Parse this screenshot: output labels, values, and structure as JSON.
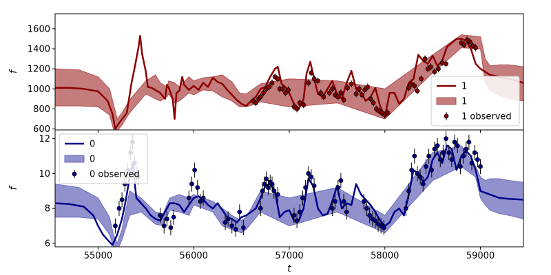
{
  "chart_data": [
    {
      "type": "line",
      "panel": "top",
      "xlabel": "",
      "ylabel": "f",
      "xlim": [
        54550,
        59450
      ],
      "ylim": [
        590,
        1750
      ],
      "yticks": [
        600,
        800,
        1000,
        1200,
        1400,
        1600
      ],
      "legend": {
        "placement": "bottom-right",
        "entries": [
          {
            "kind": "line",
            "label": "1"
          },
          {
            "kind": "band",
            "label": "1"
          },
          {
            "kind": "points",
            "label": "1 observed"
          }
        ]
      },
      "colors": {
        "line": "#8b0000",
        "band": "#b05050",
        "points": "#8b0000"
      },
      "series": [
        {
          "role": "prediction",
          "x": [
            54550,
            54700,
            54850,
            55000,
            55100,
            55150,
            55180,
            55220,
            55300,
            55350,
            55380,
            55420,
            55440,
            55460,
            55500,
            55520,
            55560,
            55650,
            55700,
            55720,
            55740,
            55780,
            55800,
            55820,
            55850,
            55880,
            55900,
            55950,
            56000,
            56050,
            56100,
            56150,
            56200,
            56250,
            56300,
            56350,
            56450,
            56500,
            56550,
            56600,
            56650,
            56700,
            56750,
            56800,
            56850,
            56880,
            56920,
            56980,
            57050,
            57100,
            57150,
            57180,
            57220,
            57260,
            57300,
            57350,
            57400,
            57450,
            57500,
            57550,
            57600,
            57650,
            57700,
            57750,
            57800,
            57850,
            57900,
            57950,
            58000,
            58050,
            58100,
            58150,
            58200,
            58250,
            58300,
            58350,
            58400,
            58450,
            58500,
            58550,
            58600,
            58650,
            58700,
            58750,
            58800,
            58850,
            58900,
            58950,
            59000,
            59100,
            59200,
            59300,
            59450
          ],
          "y": [
            1010,
            1010,
            1000,
            975,
            880,
            750,
            600,
            660,
            760,
            1060,
            1200,
            1400,
            1530,
            1350,
            1170,
            1020,
            1010,
            960,
            900,
            1040,
            1010,
            900,
            700,
            960,
            980,
            1120,
            1040,
            990,
            1030,
            990,
            1060,
            1020,
            1110,
            1070,
            1050,
            990,
            890,
            850,
            830,
            880,
            920,
            1000,
            1020,
            1120,
            1200,
            1220,
            1050,
            1000,
            850,
            800,
            900,
            1150,
            1270,
            1100,
            950,
            920,
            1000,
            1080,
            950,
            900,
            1060,
            1180,
            1000,
            960,
            880,
            920,
            1010,
            830,
            720,
            960,
            960,
            850,
            900,
            1060,
            1100,
            1340,
            1280,
            1250,
            1330,
            1230,
            1280,
            1420,
            1460,
            1500,
            1500,
            1480,
            1400,
            1250,
            1200,
            1140,
            1120,
            1100,
            1060
          ]
        },
        {
          "role": "band-upper",
          "x": [
            54550,
            54800,
            55000,
            55120,
            55160,
            55200,
            55250,
            55330,
            55500,
            55600,
            55650,
            55720,
            55740,
            55800,
            55850,
            55950,
            56000,
            56100,
            56200,
            56300,
            56400,
            56480,
            56550,
            56700,
            57000,
            57500,
            58000,
            58500,
            58800,
            59000,
            59050,
            59100,
            59200,
            59300,
            59450
          ],
          "y": [
            1200,
            1190,
            1120,
            1000,
            850,
            700,
            760,
            890,
            1080,
            1140,
            1060,
            1020,
            1080,
            1060,
            1020,
            1120,
            1080,
            1110,
            1120,
            1140,
            1070,
            960,
            950,
            1050,
            1100,
            1080,
            1000,
            1340,
            1540,
            1520,
            1300,
            1230,
            1240,
            1240,
            1220
          ]
        },
        {
          "role": "band-lower",
          "x": [
            54550,
            54800,
            55000,
            55120,
            55160,
            55200,
            55250,
            55330,
            55500,
            55600,
            55650,
            55720,
            55740,
            55800,
            55850,
            55950,
            56000,
            56100,
            56200,
            56300,
            56400,
            56480,
            56550,
            56700,
            57000,
            57500,
            58000,
            58500,
            58800,
            59000,
            59050,
            59100,
            59200,
            59300,
            59450
          ],
          "y": [
            830,
            830,
            820,
            740,
            600,
            580,
            640,
            760,
            950,
            900,
            880,
            920,
            950,
            860,
            880,
            960,
            940,
            990,
            980,
            920,
            880,
            820,
            820,
            870,
            820,
            860,
            700,
            1160,
            1410,
            1400,
            1060,
            990,
            930,
            900,
            880
          ]
        },
        {
          "role": "observed",
          "x": [
            56620,
            56650,
            56680,
            56700,
            56730,
            56760,
            56790,
            56820,
            56850,
            56880,
            56900,
            56930,
            56960,
            56990,
            57050,
            57080,
            57110,
            57150,
            57200,
            57230,
            57260,
            57300,
            57330,
            57360,
            57420,
            57450,
            57480,
            57510,
            57540,
            57570,
            57610,
            57650,
            57700,
            57730,
            57760,
            57790,
            57820,
            57850,
            57880,
            57910,
            57940,
            57970,
            58000,
            58030,
            58250,
            58280,
            58310,
            58340,
            58380,
            58420,
            58450,
            58480,
            58520,
            58560,
            58600,
            58640,
            58800,
            58830,
            58860,
            58890,
            58920,
            58950
          ],
          "y": [
            880,
            860,
            900,
            920,
            960,
            1000,
            1020,
            1060,
            1120,
            1100,
            1000,
            1000,
            960,
            990,
            820,
            800,
            860,
            840,
            1060,
            1160,
            1100,
            1080,
            960,
            920,
            960,
            1000,
            940,
            920,
            960,
            890,
            1010,
            1050,
            950,
            1000,
            940,
            990,
            1020,
            900,
            860,
            800,
            780,
            760,
            740,
            760,
            1010,
            1050,
            1030,
            980,
            1100,
            1300,
            1200,
            1220,
            1170,
            1200,
            1260,
            1250,
            1460,
            1440,
            1490,
            1470,
            1430,
            1410
          ]
        }
      ]
    },
    {
      "type": "line",
      "panel": "bottom",
      "xlabel": "t",
      "ylabel": "f",
      "xlim": [
        54550,
        59450
      ],
      "ylim": [
        5.8,
        12.5
      ],
      "yticks": [
        6,
        8,
        10,
        12
      ],
      "xticks": [
        55000,
        56000,
        57000,
        58000,
        59000
      ],
      "legend": {
        "placement": "top-left",
        "entries": [
          {
            "kind": "line",
            "label": "0"
          },
          {
            "kind": "band",
            "label": "0"
          },
          {
            "kind": "points",
            "label": "0 observed"
          }
        ]
      },
      "colors": {
        "line": "#00008b",
        "band": "#6c6cbd",
        "points": "#00008b"
      },
      "series": [
        {
          "role": "prediction",
          "x": [
            54550,
            54700,
            54850,
            54950,
            55000,
            55050,
            55100,
            55150,
            55200,
            55250,
            55280,
            55300,
            55330,
            55360,
            55400,
            55450,
            55500,
            55550,
            55600,
            55650,
            55700,
            55750,
            55800,
            55850,
            55900,
            55950,
            56000,
            56050,
            56100,
            56150,
            56200,
            56250,
            56300,
            56350,
            56400,
            56450,
            56500,
            56550,
            56600,
            56650,
            56700,
            56750,
            56800,
            56850,
            56900,
            56950,
            57000,
            57050,
            57100,
            57150,
            57200,
            57250,
            57300,
            57350,
            57400,
            57450,
            57500,
            57550,
            57600,
            57650,
            57700,
            57750,
            57800,
            57850,
            57900,
            57950,
            58000,
            58050,
            58100,
            58150,
            58200,
            58250,
            58300,
            58350,
            58400,
            58450,
            58500,
            58550,
            58600,
            58650,
            58700,
            58750,
            58800,
            58850,
            58900,
            58950,
            59000,
            59100,
            59200,
            59300,
            59450
          ],
          "y": [
            8.3,
            8.25,
            8.1,
            7.6,
            7.0,
            6.5,
            6.2,
            5.9,
            6.5,
            7.4,
            8.2,
            8.8,
            9.8,
            10.6,
            8.6,
            8.3,
            8.0,
            7.6,
            7.4,
            7.3,
            7.8,
            8.3,
            8.3,
            8.2,
            7.8,
            8.2,
            8.6,
            8.7,
            8.5,
            8.2,
            8.0,
            8.3,
            7.9,
            7.5,
            7.4,
            7.2,
            7.5,
            7.6,
            7.8,
            8.0,
            8.6,
            9.3,
            9.4,
            9.0,
            7.5,
            7.8,
            7.9,
            7.3,
            7.3,
            8.0,
            9.7,
            9.3,
            8.0,
            7.6,
            7.7,
            8.4,
            9.3,
            8.0,
            8.3,
            8.2,
            9.4,
            8.8,
            8.5,
            8.2,
            7.8,
            7.3,
            7.0,
            7.2,
            7.8,
            8.0,
            7.6,
            8.8,
            10.2,
            10.0,
            9.5,
            9.8,
            10.8,
            11.2,
            10.6,
            11.6,
            11.4,
            10.2,
            11.0,
            11.3,
            11.0,
            10.2,
            9.0,
            8.8,
            8.6,
            8.55,
            8.5
          ]
        },
        {
          "role": "band-upper",
          "x": [
            54550,
            54800,
            55000,
            55120,
            55160,
            55200,
            55250,
            55330,
            55450,
            55600,
            55680,
            55750,
            55850,
            55950,
            56000,
            56100,
            56200,
            56300,
            56400,
            56500,
            56550,
            56700,
            57000,
            57500,
            58000,
            58500,
            58800,
            58950,
            59000,
            59050,
            59100,
            59200,
            59300,
            59450
          ],
          "y": [
            9.4,
            9.2,
            8.6,
            7.5,
            6.5,
            6.0,
            6.8,
            9.0,
            8.6,
            7.8,
            7.7,
            8.6,
            8.8,
            8.6,
            8.8,
            8.6,
            8.4,
            8.0,
            7.6,
            7.3,
            7.5,
            9.0,
            8.6,
            9.2,
            7.6,
            11.2,
            11.6,
            10.4,
            9.8,
            9.6,
            9.7,
            9.7,
            9.6,
            9.5
          ]
        },
        {
          "role": "band-lower",
          "x": [
            54550,
            54800,
            55000,
            55120,
            55160,
            55200,
            55250,
            55330,
            55450,
            55600,
            55680,
            55750,
            55850,
            55950,
            56000,
            56100,
            56200,
            56300,
            56400,
            56500,
            56550,
            56700,
            57000,
            57500,
            58000,
            58500,
            58800,
            58950,
            59000,
            59050,
            59100,
            59200,
            59300,
            59450
          ],
          "y": [
            7.5,
            7.5,
            7.4,
            6.5,
            5.8,
            5.6,
            6.2,
            7.6,
            7.8,
            7.1,
            7.0,
            7.9,
            7.8,
            7.6,
            8.2,
            8.0,
            7.8,
            7.0,
            6.8,
            6.6,
            6.8,
            7.8,
            7.0,
            7.8,
            6.6,
            9.6,
            10.4,
            9.8,
            8.6,
            8.2,
            7.9,
            7.7,
            7.6,
            7.4
          ]
        },
        {
          "role": "observed",
          "x": [
            55180,
            55220,
            55250,
            55280,
            55310,
            55340,
            55360,
            55380,
            55400,
            55420,
            55650,
            55690,
            55720,
            55760,
            55790,
            55950,
            55980,
            56010,
            56040,
            56070,
            56100,
            56330,
            56360,
            56400,
            56440,
            56480,
            56520,
            56700,
            56720,
            56740,
            56760,
            56780,
            56800,
            56820,
            56840,
            56880,
            57050,
            57080,
            57110,
            57140,
            57170,
            57200,
            57230,
            57260,
            57450,
            57480,
            57510,
            57540,
            57570,
            57600,
            57780,
            57810,
            57840,
            57870,
            57900,
            57930,
            57960,
            57990,
            58220,
            58250,
            58280,
            58310,
            58340,
            58370,
            58400,
            58430,
            58460,
            58490,
            58520,
            58550,
            58580,
            58610,
            58640,
            58670,
            58700,
            58730,
            58760,
            58790,
            58820,
            58850,
            58880,
            58910,
            58940,
            58970,
            59000
          ],
          "y": [
            7.0,
            8.0,
            8.5,
            9.4,
            10.2,
            11.2,
            11.8,
            10.6,
            10.0,
            9.8,
            7.6,
            7.0,
            7.4,
            6.9,
            7.5,
            8.6,
            9.4,
            10.2,
            9.2,
            8.4,
            8.6,
            7.2,
            7.4,
            7.0,
            6.8,
            7.8,
            6.9,
            8.0,
            9.0,
            9.4,
            9.7,
            9.2,
            9.5,
            9.4,
            9.0,
            8.8,
            7.6,
            7.3,
            7.8,
            8.6,
            9.2,
            10.0,
            9.8,
            9.3,
            8.0,
            8.4,
            9.2,
            9.6,
            8.4,
            7.8,
            8.4,
            8.0,
            7.6,
            7.4,
            7.3,
            7.1,
            7.0,
            6.9,
            8.0,
            9.0,
            10.2,
            11.0,
            10.0,
            9.8,
            9.4,
            10.4,
            11.0,
            10.2,
            11.4,
            11.6,
            10.8,
            11.2,
            12.0,
            11.2,
            10.8,
            11.8,
            11.6,
            10.4,
            11.0,
            11.4,
            11.8,
            10.6,
            11.2,
            10.8,
            10.4
          ]
        }
      ]
    }
  ]
}
